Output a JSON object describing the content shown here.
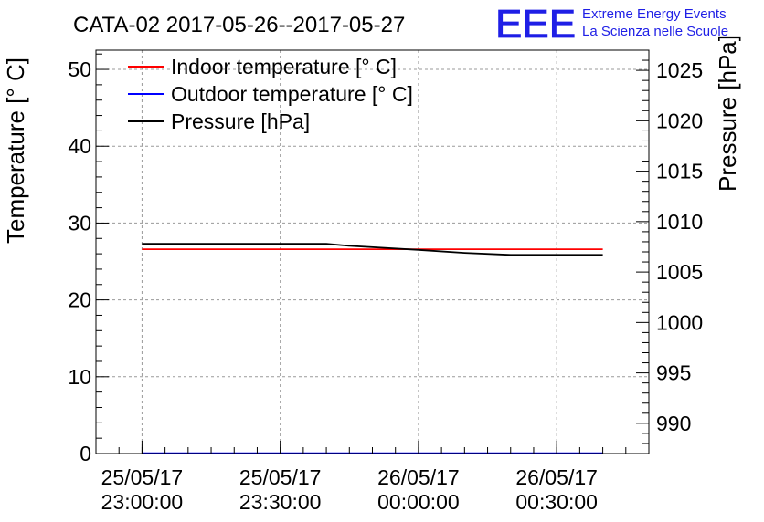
{
  "header": {
    "title": "CATA-02 2017-05-26--2017-05-27",
    "logo_text": "EEE",
    "logo_line1": "Extreme Energy Events",
    "logo_line2": "La Scienza nelle Scuole"
  },
  "colors": {
    "indoor": "#ff0000",
    "outdoor": "#0000ff",
    "pressure": "#000000",
    "logo": "#1f1fe6",
    "grid": "#9a9a9a"
  },
  "chart_data": {
    "type": "line",
    "title": "CATA-02 2017-05-26--2017-05-27",
    "xlabel": "",
    "ylabel": "Temperature [° C]",
    "y2label": "Pressure [hPa]",
    "xlim": [
      "2017-05-25 22:50:00",
      "2017-05-26 00:50:00"
    ],
    "ylim": [
      0,
      52.5
    ],
    "y2lim": [
      987,
      1027
    ],
    "grid": true,
    "legend_position": "top-left",
    "x_ticks": [
      {
        "date": "25/05/17",
        "time": "23:00:00",
        "value": "2017-05-25 23:00:00"
      },
      {
        "date": "25/05/17",
        "time": "23:30:00",
        "value": "2017-05-25 23:30:00"
      },
      {
        "date": "26/05/17",
        "time": "00:00:00",
        "value": "2017-05-26 00:00:00"
      },
      {
        "date": "26/05/17",
        "time": "00:30:00",
        "value": "2017-05-26 00:30:00"
      }
    ],
    "y_ticks": [
      "0",
      "10",
      "20",
      "30",
      "40",
      "50"
    ],
    "y2_ticks": [
      "990",
      "995",
      "1000",
      "1005",
      "1010",
      "1015",
      "1020",
      "1025"
    ],
    "series": [
      {
        "name": "Indoor temperature [° C]",
        "axis": "left",
        "color": "#ff0000",
        "points": [
          [
            "2017-05-25 23:00:00",
            26.6
          ],
          [
            "2017-05-26 00:40:00",
            26.6
          ]
        ]
      },
      {
        "name": "Outdoor temperature [° C]",
        "axis": "left",
        "color": "#0000ff",
        "points": [
          [
            "2017-05-25 23:00:00",
            0.05
          ],
          [
            "2017-05-26 00:40:00",
            0.05
          ]
        ]
      },
      {
        "name": "Pressure [hPa]",
        "axis": "right",
        "color": "#000000",
        "points": [
          [
            "2017-05-25 23:00:00",
            1007.8
          ],
          [
            "2017-05-25 23:40:00",
            1007.8
          ],
          [
            "2017-05-25 23:45:00",
            1007.6
          ],
          [
            "2017-05-26 00:00:00",
            1007.2
          ],
          [
            "2017-05-26 00:10:00",
            1006.9
          ],
          [
            "2017-05-26 00:20:00",
            1006.7
          ],
          [
            "2017-05-26 00:30:00",
            1006.7
          ],
          [
            "2017-05-26 00:40:00",
            1006.7
          ]
        ]
      }
    ]
  }
}
